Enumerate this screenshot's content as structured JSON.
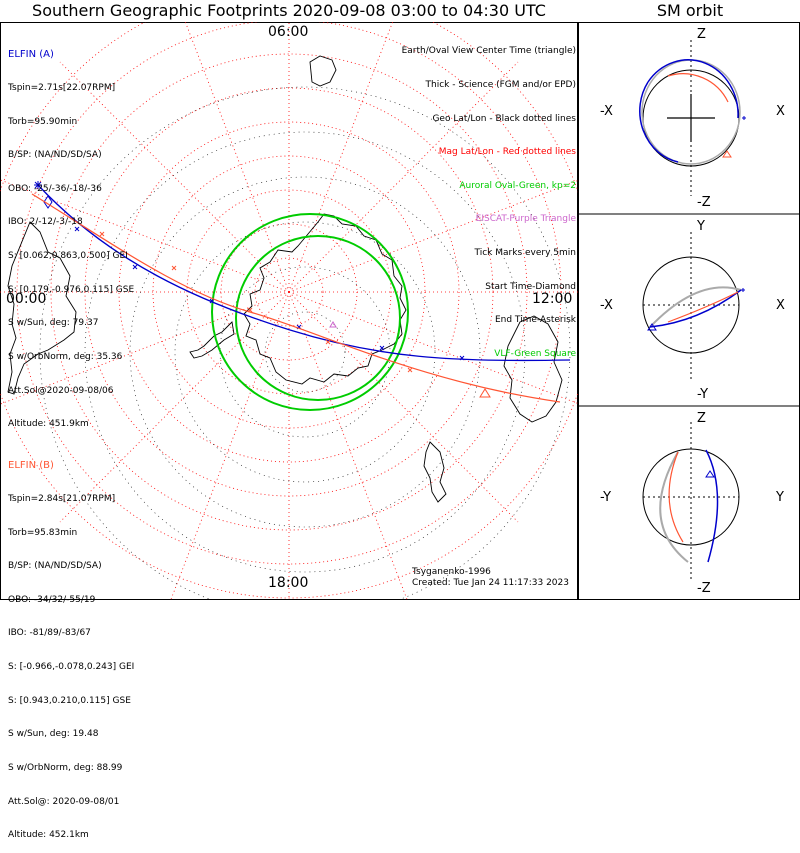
{
  "title": "Southern Geographic Footprints 2020-09-08 03:00 to 04:30 UTC",
  "orbit_title": "SM orbit",
  "time_labels": {
    "top": "06:00",
    "left": "00:00",
    "right": "12:00",
    "bottom": "18:00"
  },
  "elfin_a": {
    "header": "ELFIN (A)",
    "color": "#0000cc",
    "lines": [
      "Tspin=2.71s[22.07RPM]",
      "Torb=95.90min",
      "B/SP: (NA/ND/SD/SA)",
      "OBO: -25/-36/-18/-36",
      "IBO: 2/-12/-3/-18",
      "S: [0.062,0.863,0.500] GEI",
      "S: [0.179,-0.976,0.115] GSE",
      "S w/Sun, deg: 79.37",
      "S w/OrbNorm, deg: 35.36",
      "Att.Sol@2020-09-08/06",
      "Altitude: 451.9km"
    ]
  },
  "elfin_b": {
    "header": "ELFIN (B)",
    "color": "#ff5533",
    "lines": [
      "Tspin=2.84s[21.07RPM]",
      "Torb=95.83min",
      "B/SP: (NA/ND/SD/SA)",
      "OBO: -34/32/-55/19",
      "IBO: -81/89/-83/67",
      "S: [-0.966,-0.078,0.243] GEI",
      "S: [0.943,0.210,0.115] GSE",
      "S w/Sun, deg: 19.48",
      "S w/OrbNorm, deg: 88.99",
      "Att.Sol@: 2020-09-08/01",
      "Altitude: 452.1km"
    ]
  },
  "legend": [
    {
      "text": "Earth/Oval View Center Time (triangle)",
      "color": "#000000"
    },
    {
      "text": "Thick - Science (FGM and/or EPD)",
      "color": "#000000"
    },
    {
      "text": "Geo Lat/Lon - Black dotted lines",
      "color": "#000000"
    },
    {
      "text": "Mag Lat/Lon - Red dotted lines",
      "color": "#ff0000"
    },
    {
      "text": "Auroral Oval-Green, kp=2",
      "color": "#00cc00"
    },
    {
      "text": "EISCAT-Purple Triangle",
      "color": "#cc66cc"
    },
    {
      "text": "Tick Marks every 5min",
      "color": "#000000"
    },
    {
      "text": "Start Time-Diamond",
      "color": "#000000"
    },
    {
      "text": "End Time-Asterisk",
      "color": "#000000"
    },
    {
      "text": "VLF-Green Square",
      "color": "#00cc00"
    }
  ],
  "credits": [
    "Tsyganenko-1996",
    "Created: Tue Jan 24 11:17:33 2023"
  ],
  "orbit_panels": [
    {
      "top": "Z",
      "bottom": "-Z",
      "left": "-X",
      "right": "X"
    },
    {
      "top": "Y",
      "bottom": "-Y",
      "left": "-X",
      "right": "X"
    },
    {
      "top": "Z",
      "bottom": "-Z",
      "left": "-Y",
      "right": "Y"
    }
  ],
  "colors": {
    "elfin_a": "#0000cc",
    "elfin_b": "#ff5533",
    "oval": "#00cc00",
    "grid": "#ff0000",
    "orbit_ref": "#aaaaaa"
  }
}
